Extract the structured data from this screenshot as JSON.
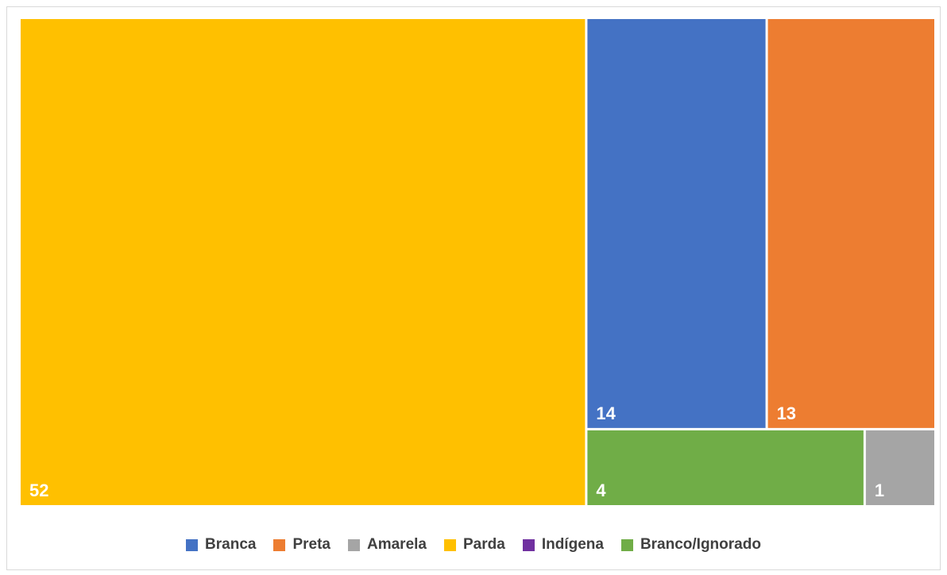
{
  "chart_data": {
    "type": "treemap",
    "title": "",
    "series": [
      {
        "name": "Parda",
        "value": 52,
        "color": "#FFC000"
      },
      {
        "name": "Branca",
        "value": 14,
        "color": "#4472C4"
      },
      {
        "name": "Preta",
        "value": 13,
        "color": "#ED7D31"
      },
      {
        "name": "Branco/Ignorado",
        "value": 4,
        "color": "#70AD47"
      },
      {
        "name": "Amarela",
        "value": 1,
        "color": "#A5A5A5"
      },
      {
        "name": "Indígena",
        "value": 0,
        "color": "#7030A0"
      }
    ],
    "legend": {
      "position": "bottom",
      "items": [
        {
          "label": "Branca",
          "color": "#4472C4"
        },
        {
          "label": "Preta",
          "color": "#ED7D31"
        },
        {
          "label": "Amarela",
          "color": "#A5A5A5"
        },
        {
          "label": "Parda",
          "color": "#FFC000"
        },
        {
          "label": "Indígena",
          "color": "#7030A0"
        },
        {
          "label": "Branco/Ignorado",
          "color": "#70AD47"
        }
      ]
    }
  }
}
